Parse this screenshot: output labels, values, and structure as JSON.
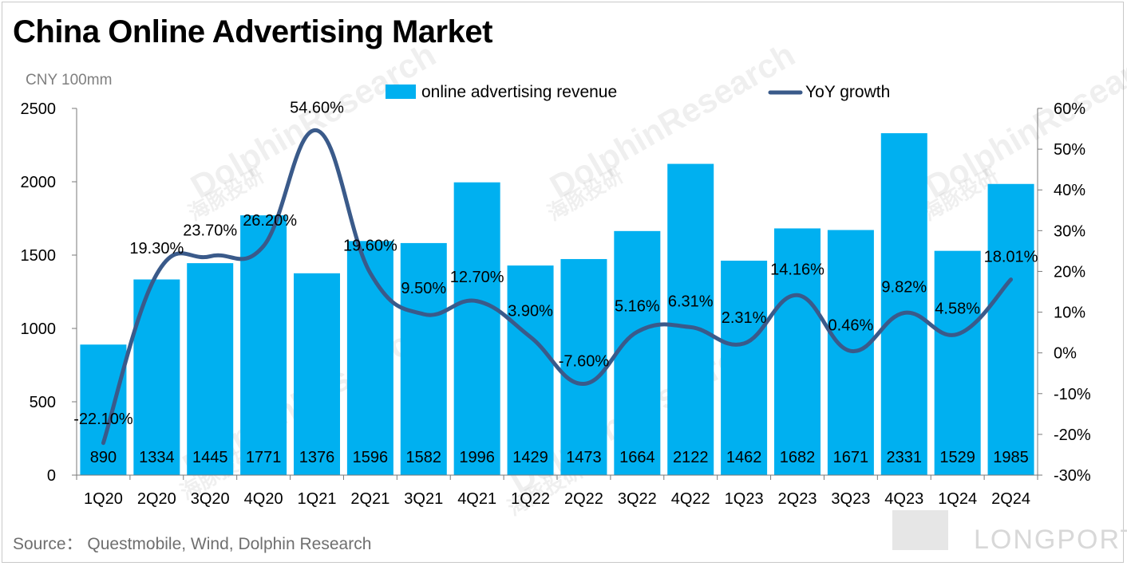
{
  "title": "China Online Advertising Market",
  "unit_label": "CNY 100mm",
  "source": "Source：  Questmobile, Wind, Dolphin Research",
  "watermark": {
    "brand": "DolphinResearch",
    "brand_cn": "海豚投研",
    "logo": "LONGPORT"
  },
  "colors": {
    "bar": "#00B0F0",
    "line": "#3A5A8A",
    "axis": "#000000"
  },
  "chart_data": {
    "type": "bar",
    "categories": [
      "1Q20",
      "2Q20",
      "3Q20",
      "4Q20",
      "1Q21",
      "2Q21",
      "3Q21",
      "4Q21",
      "1Q22",
      "2Q22",
      "3Q22",
      "4Q22",
      "1Q23",
      "2Q23",
      "3Q23",
      "4Q23",
      "1Q24",
      "2Q24"
    ],
    "series": [
      {
        "name": "online advertising revenue",
        "type": "bar",
        "axis": "left",
        "values": [
          890,
          1334,
          1445,
          1771,
          1376,
          1596,
          1582,
          1996,
          1429,
          1473,
          1664,
          2122,
          1462,
          1682,
          1671,
          2331,
          1529,
          1985
        ],
        "labels": [
          "890",
          "1334",
          "1445",
          "1771",
          "1376",
          "1596",
          "1582",
          "1996",
          "1429",
          "1473",
          "1664",
          "2122",
          "1462",
          "1682",
          "1671",
          "2331",
          "1529",
          "1985"
        ]
      },
      {
        "name": "YoY growth",
        "type": "line",
        "axis": "right",
        "values": [
          -22.1,
          19.3,
          23.7,
          26.2,
          54.6,
          19.6,
          9.5,
          12.7,
          3.9,
          -7.6,
          5.16,
          6.31,
          2.31,
          14.16,
          0.46,
          9.82,
          4.58,
          18.01
        ],
        "labels": [
          "-22.10%",
          "19.30%",
          "23.70%",
          "26.20%",
          "54.60%",
          "19.60%",
          "9.50%",
          "12.70%",
          "3.90%",
          "-7.60%",
          "5.16%",
          "6.31%",
          "2.31%",
          "14.16%",
          "0.46%",
          "9.82%",
          "4.58%",
          "18.01%"
        ]
      }
    ],
    "left_axis": {
      "ylim": [
        0,
        2500
      ],
      "ticks": [
        "0",
        "500",
        "1000",
        "1500",
        "2000",
        "2500"
      ]
    },
    "right_axis": {
      "ylim": [
        -30,
        60
      ],
      "ticks": [
        "-30%",
        "-20%",
        "-10%",
        "0%",
        "10%",
        "20%",
        "30%",
        "40%",
        "50%",
        "60%"
      ]
    },
    "legend_position": "top-center",
    "grid": false
  }
}
